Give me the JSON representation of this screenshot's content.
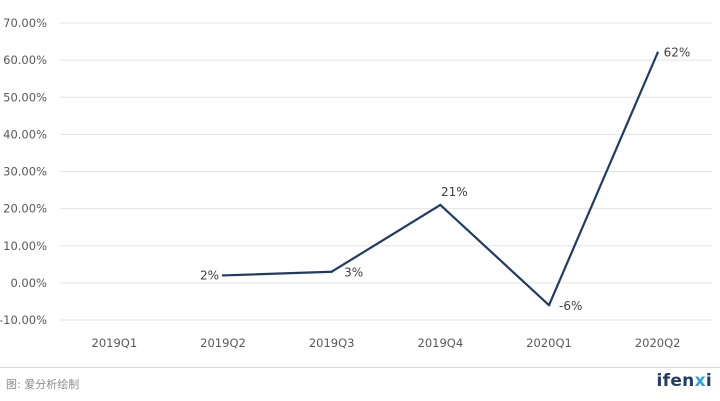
{
  "chart_data": {
    "type": "line",
    "categories": [
      "2019Q1",
      "2019Q2",
      "2019Q3",
      "2019Q4",
      "2020Q1",
      "2020Q2"
    ],
    "series": [
      {
        "values": [
          null,
          2,
          3,
          21,
          -6,
          62
        ],
        "labels": [
          null,
          "2%",
          "3%",
          "21%",
          "-6%",
          "62%"
        ],
        "color": "#1f3b68"
      }
    ],
    "yticks": [
      "-10.00%",
      "0.00%",
      "10.00%",
      "20.00%",
      "30.00%",
      "40.00%",
      "50.00%",
      "60.00%",
      "70.00%"
    ],
    "ytick_values": [
      -10,
      0,
      10,
      20,
      30,
      40,
      50,
      60,
      70
    ],
    "ylim": [
      -10,
      70
    ],
    "grid": true,
    "legend": "none"
  },
  "footer": {
    "source": "图: 爱分析绘制",
    "logo": "ifenxi"
  }
}
